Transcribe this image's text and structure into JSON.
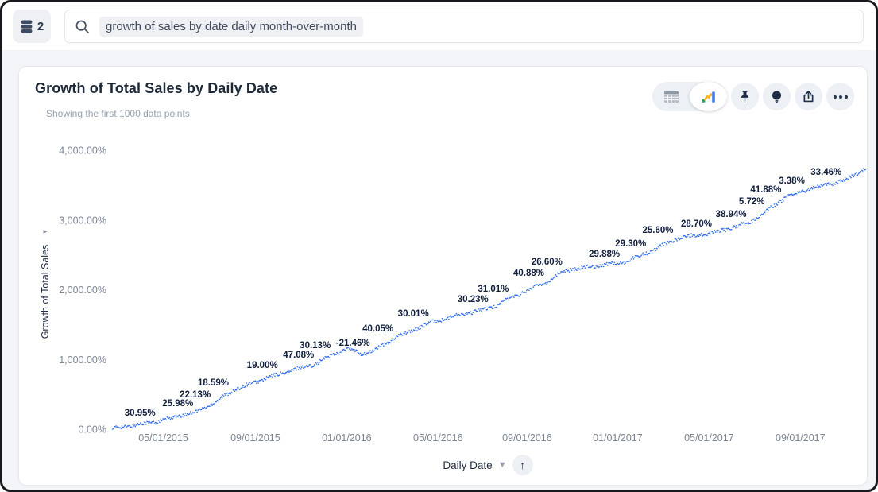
{
  "topbar": {
    "datasource": {
      "count": "2"
    },
    "search": {
      "query": "growth of sales by date daily month-over-month"
    }
  },
  "viz": {
    "title": "Growth of Total Sales by Daily Date",
    "subtitle": "Showing the first 1000 data points",
    "toolbar": [
      {
        "name": "table-view-toggle",
        "icon": "table-icon",
        "selected": false
      },
      {
        "name": "chart-view-toggle",
        "icon": "step-chart-icon",
        "selected": true
      },
      {
        "name": "pin-button",
        "icon": "pin-icon"
      },
      {
        "name": "insights-button",
        "icon": "lightbulb-icon"
      },
      {
        "name": "share-button",
        "icon": "share-icon"
      },
      {
        "name": "more-button",
        "icon": "ellipsis-icon"
      }
    ]
  },
  "x_axis_control": {
    "label": "Daily Date",
    "dropdown_icon": "chevron-down-icon",
    "sort_icon": "arrow-up-icon"
  },
  "chart_data": {
    "type": "line",
    "style": "dotted",
    "title": "Growth of Total Sales by Daily Date",
    "xlabel": "Daily Date",
    "ylabel": "Growth of Total Sales",
    "ylim": [
      0,
      4000
    ],
    "grid": false,
    "line_color": "#2E6BE6",
    "label_color": "#101F3C",
    "y_ticks": [
      {
        "value": 0,
        "label": "0.00%"
      },
      {
        "value": 1000,
        "label": "1,000.00%"
      },
      {
        "value": 2000,
        "label": "2,000.00%"
      },
      {
        "value": 3000,
        "label": "3,000.00%"
      },
      {
        "value": 4000,
        "label": "4,000.00%"
      }
    ],
    "x_ticks": [
      {
        "label": "05/01/2015",
        "f": 0.07
      },
      {
        "label": "09/01/2015",
        "f": 0.192
      },
      {
        "label": "01/01/2016",
        "f": 0.313
      },
      {
        "label": "05/01/2016",
        "f": 0.434
      },
      {
        "label": "09/01/2016",
        "f": 0.552
      },
      {
        "label": "01/01/2017",
        "f": 0.672
      },
      {
        "label": "05/01/2017",
        "f": 0.793
      },
      {
        "label": "09/01/2017",
        "f": 0.914
      }
    ],
    "point_labels": [
      {
        "label": "30.95%",
        "f": 0.064,
        "v": 114
      },
      {
        "label": "25.98%",
        "f": 0.114,
        "v": 251
      },
      {
        "label": "22.13%",
        "f": 0.137,
        "v": 376
      },
      {
        "label": "18.59%",
        "f": 0.161,
        "v": 547
      },
      {
        "label": "19.00%",
        "f": 0.226,
        "v": 798
      },
      {
        "label": "47.08%",
        "f": 0.274,
        "v": 946
      },
      {
        "label": "30.13%",
        "f": 0.296,
        "v": 1083
      },
      {
        "label": "-21.46%",
        "f": 0.348,
        "v": 1117
      },
      {
        "label": "40.05%",
        "f": 0.379,
        "v": 1322
      },
      {
        "label": "30.01%",
        "f": 0.426,
        "v": 1538
      },
      {
        "label": "30.23%",
        "f": 0.505,
        "v": 1744
      },
      {
        "label": "31.01%",
        "f": 0.532,
        "v": 1892
      },
      {
        "label": "40.88%",
        "f": 0.579,
        "v": 2120
      },
      {
        "label": "26.60%",
        "f": 0.603,
        "v": 2280
      },
      {
        "label": "29.88%",
        "f": 0.679,
        "v": 2394
      },
      {
        "label": "29.30%",
        "f": 0.714,
        "v": 2541
      },
      {
        "label": "25.60%",
        "f": 0.75,
        "v": 2735
      },
      {
        "label": "28.70%",
        "f": 0.801,
        "v": 2826
      },
      {
        "label": "38.94%",
        "f": 0.847,
        "v": 2963
      },
      {
        "label": "5.72%",
        "f": 0.871,
        "v": 3145
      },
      {
        "label": "41.88%",
        "f": 0.893,
        "v": 3316
      },
      {
        "label": "3.38%",
        "f": 0.924,
        "v": 3442
      },
      {
        "label": "33.46%",
        "f": 0.973,
        "v": 3567
      }
    ],
    "line_anchors": [
      [
        0.003,
        10
      ],
      [
        0.03,
        55
      ],
      [
        0.064,
        114
      ],
      [
        0.114,
        251
      ],
      [
        0.137,
        376
      ],
      [
        0.161,
        547
      ],
      [
        0.195,
        690
      ],
      [
        0.226,
        798
      ],
      [
        0.274,
        946
      ],
      [
        0.296,
        1083
      ],
      [
        0.315,
        1150
      ],
      [
        0.335,
        1078
      ],
      [
        0.348,
        1117
      ],
      [
        0.379,
        1322
      ],
      [
        0.426,
        1538
      ],
      [
        0.465,
        1640
      ],
      [
        0.505,
        1744
      ],
      [
        0.532,
        1892
      ],
      [
        0.579,
        2120
      ],
      [
        0.603,
        2280
      ],
      [
        0.64,
        2340
      ],
      [
        0.679,
        2394
      ],
      [
        0.714,
        2541
      ],
      [
        0.75,
        2735
      ],
      [
        0.801,
        2826
      ],
      [
        0.847,
        2963
      ],
      [
        0.871,
        3145
      ],
      [
        0.893,
        3316
      ],
      [
        0.924,
        3442
      ],
      [
        0.973,
        3567
      ],
      [
        1.0,
        3745
      ]
    ]
  }
}
